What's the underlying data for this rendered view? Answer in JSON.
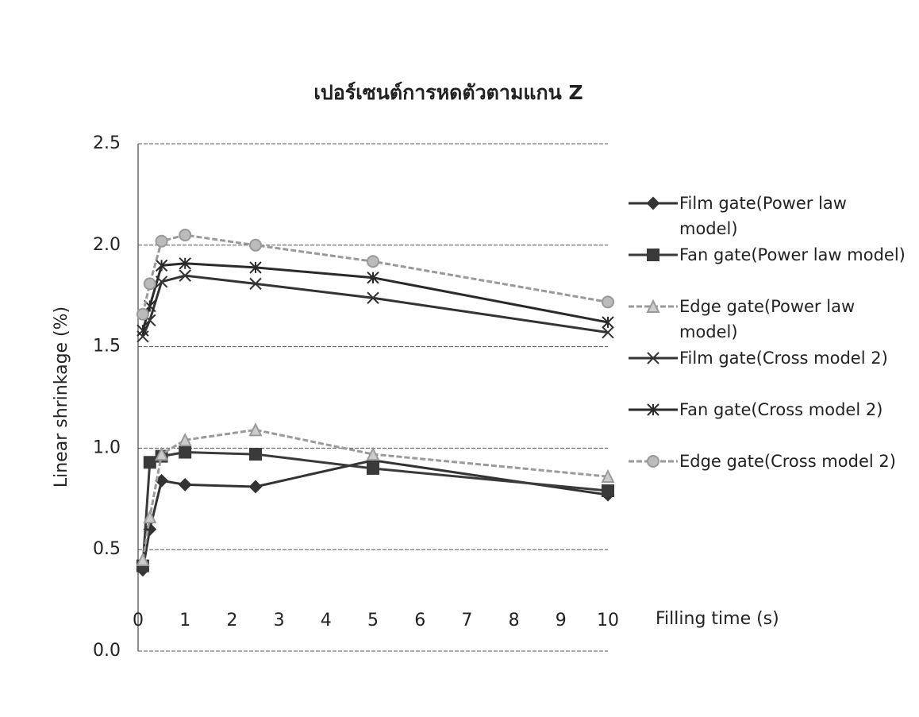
{
  "chart_data": {
    "type": "line",
    "title": "เปอร์เซนต์การหดตัวตามแกน Z",
    "y_label": "Linear shrinkage (%)",
    "x_label": "Filling time (s)",
    "x": [
      0.1,
      0.25,
      0.5,
      1,
      2.5,
      5,
      10
    ],
    "xlim": [
      0,
      10
    ],
    "xticks": [
      0,
      1,
      2,
      3,
      4,
      5,
      6,
      7,
      8,
      9,
      10
    ],
    "ylim": [
      0,
      2.5
    ],
    "yticks": [
      {
        "value": 0,
        "label": "0.0"
      },
      0.5,
      {
        "value": 1,
        "label": "1.0"
      },
      1.5,
      {
        "value": 2,
        "label": "2.0"
      },
      2.5
    ],
    "grid": true,
    "legend": "right",
    "series": [
      {
        "name": "Film gate(Power law model)",
        "color": "#333333",
        "marker": "diamond",
        "dashed": false,
        "values": [
          0.4,
          0.6,
          0.84,
          0.82,
          0.81,
          0.94,
          0.77
        ]
      },
      {
        "name": "Fan gate(Power law model)",
        "color": "#3a3a3a",
        "marker": "square",
        "dashed": false,
        "values": [
          0.42,
          0.93,
          0.96,
          0.98,
          0.97,
          0.9,
          0.79
        ]
      },
      {
        "name": "Edge gate(Power law model)",
        "color": "#9a9a9a",
        "marker": "triangle",
        "dashed": true,
        "values": [
          0.45,
          0.66,
          0.97,
          1.04,
          1.09,
          0.97,
          0.86
        ]
      },
      {
        "name": "Film gate(Cross model 2)",
        "color": "#333333",
        "marker": "x",
        "dashed": false,
        "values": [
          1.55,
          1.63,
          1.82,
          1.85,
          1.81,
          1.74,
          1.57
        ]
      },
      {
        "name": "Fan gate(Cross model 2)",
        "color": "#2a2a2a",
        "marker": "asterisk",
        "dashed": false,
        "values": [
          1.58,
          1.7,
          1.9,
          1.91,
          1.89,
          1.84,
          1.62
        ]
      },
      {
        "name": "Edge gate(Cross model 2)",
        "color": "#999999",
        "marker": "circle",
        "dashed": true,
        "values": [
          1.66,
          1.81,
          2.02,
          2.05,
          2.0,
          1.92,
          1.72
        ]
      }
    ]
  }
}
